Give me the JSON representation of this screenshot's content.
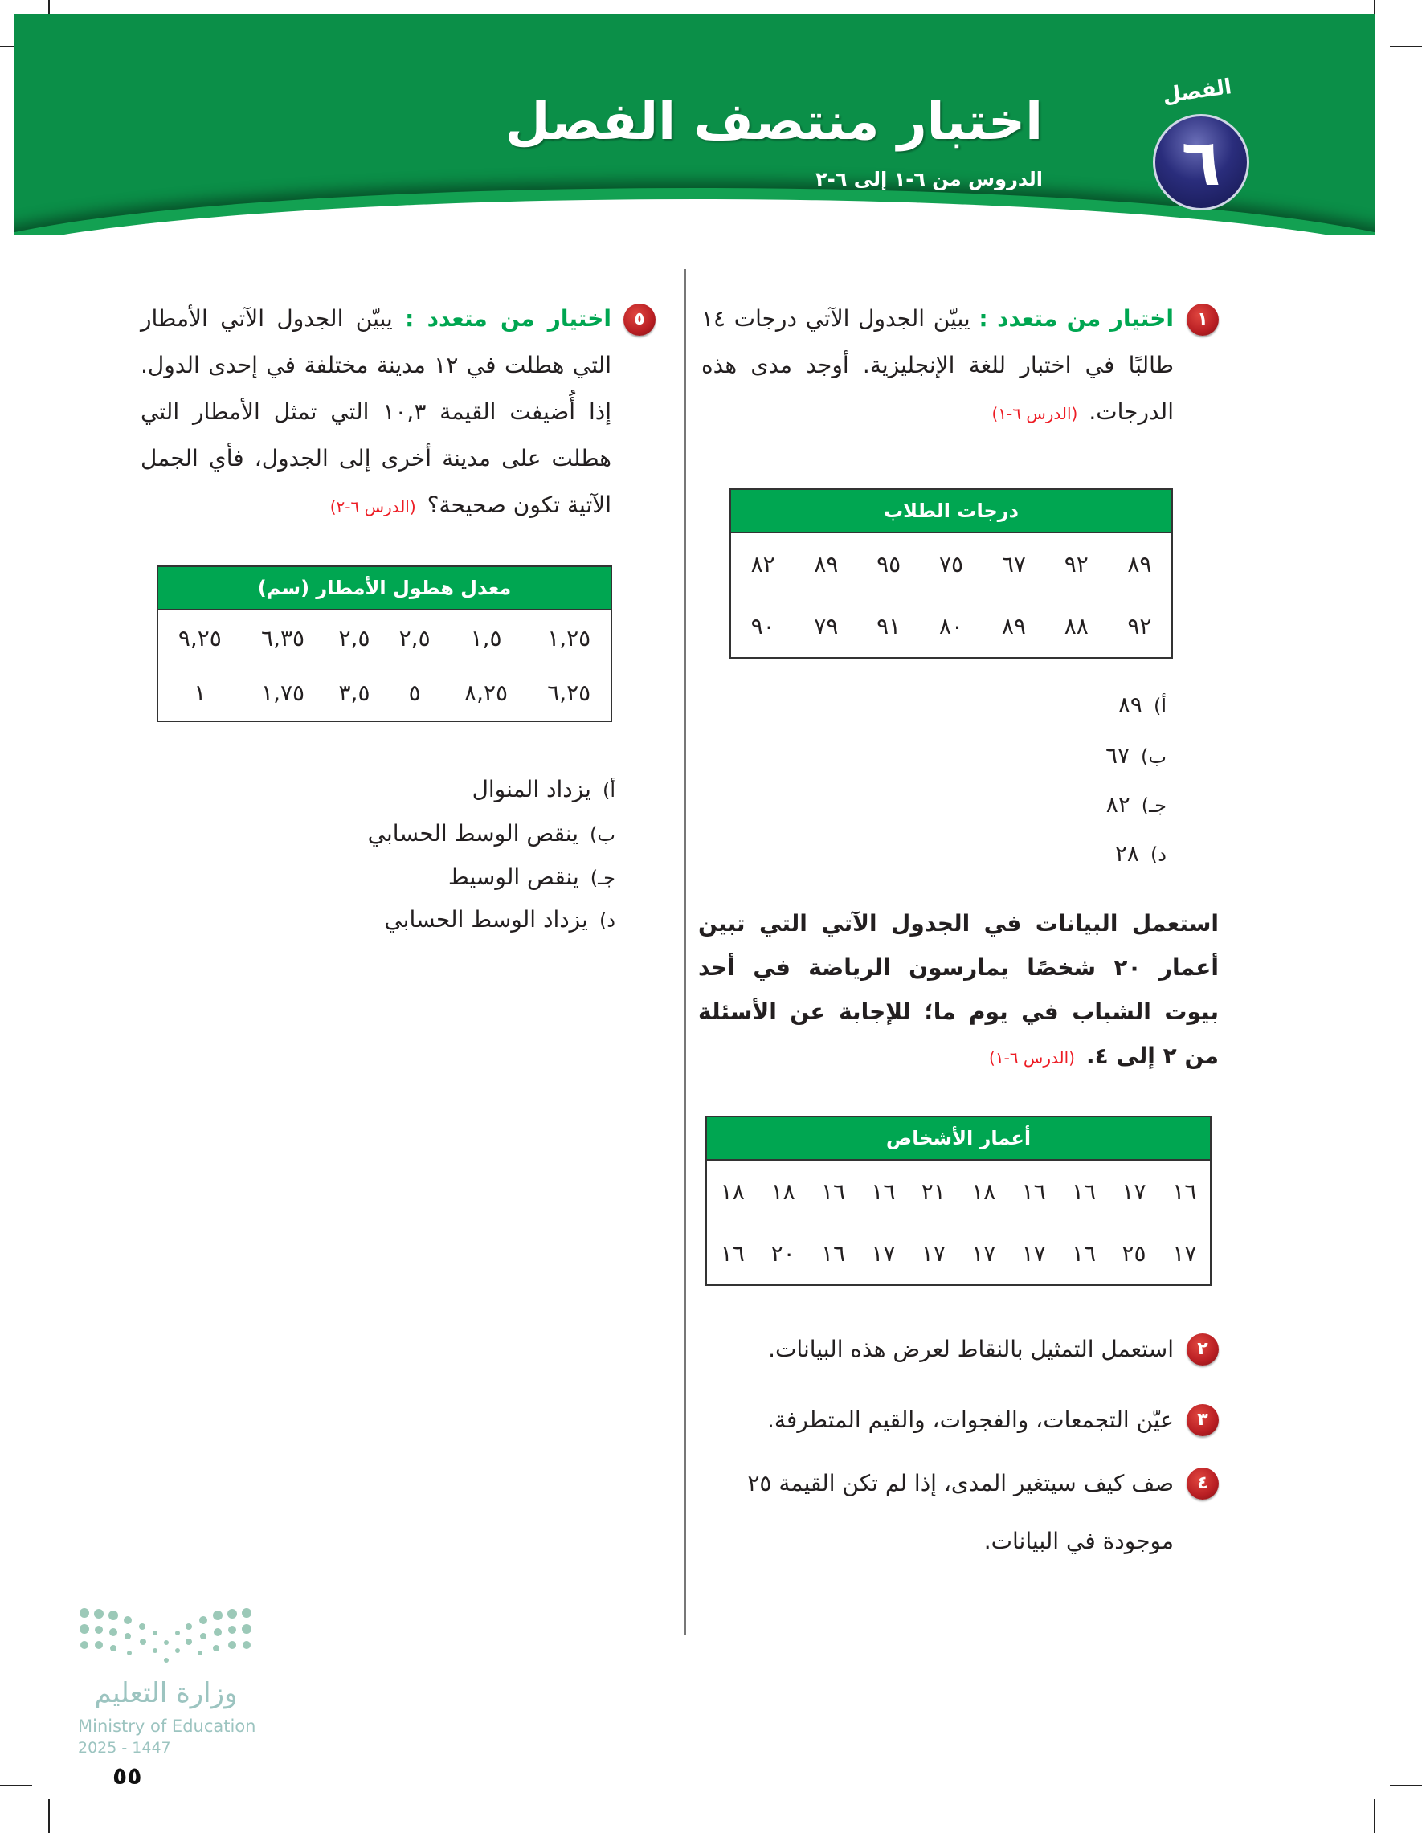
{
  "header": {
    "chapter_label": "الفصل",
    "chapter_number": "٦",
    "title": "اختبار منتصف الفصل",
    "subtitle": "الدروس من ٦-١ إلى ٦-٢",
    "color": "#0b8f48"
  },
  "q1": {
    "number": "١",
    "keyword": "اختيار من متعدد :",
    "text": "يبيّن الجدول الآتي درجات ١٤ طالبًا في اختبار للغة الإنجليزية. أوجد مدى هذه الدرجات.",
    "ref": "(الدرس ٦-١)",
    "table": {
      "header": "درجات الطلاب",
      "rows": [
        [
          "٨٩",
          "٩٢",
          "٦٧",
          "٧٥",
          "٩٥",
          "٨٩",
          "٨٢"
        ],
        [
          "٩٢",
          "٨٨",
          "٨٩",
          "٨٠",
          "٩١",
          "٧٩",
          "٩٠"
        ]
      ]
    },
    "options": [
      {
        "letter": "أ)",
        "text": "٨٩"
      },
      {
        "letter": "ب)",
        "text": "٦٧"
      },
      {
        "letter": "جـ)",
        "text": "٨٢"
      },
      {
        "letter": "د)",
        "text": "٢٨"
      }
    ]
  },
  "intro": {
    "text": "استعمل البيانات في الجدول الآتي التي تبين أعمار ٢٠ شخصًا يمارسون الرياضة في أحد بيوت الشباب في يوم ما؛ للإجابة عن الأسئلة من ٢ إلى ٤.",
    "ref": "(الدرس ٦-١)",
    "table": {
      "header": "أعمار الأشخاص",
      "rows": [
        [
          "١٦",
          "١٧",
          "١٦",
          "١٦",
          "١٨",
          "٢١",
          "١٦",
          "١٦",
          "١٨",
          "١٨"
        ],
        [
          "١٧",
          "٢٥",
          "١٦",
          "١٧",
          "١٧",
          "١٧",
          "١٧",
          "١٦",
          "٢٠",
          "١٦"
        ]
      ]
    }
  },
  "q2": {
    "number": "٢",
    "text": "استعمل التمثيل بالنقاط لعرض هذه البيانات."
  },
  "q3": {
    "number": "٣",
    "text": "عيّن التجمعات، والفجوات، والقيم المتطرفة."
  },
  "q4": {
    "number": "٤",
    "text": "صف كيف سيتغير المدى، إذا لم تكن القيمة ٢٥ موجودة في البيانات."
  },
  "q5": {
    "number": "٥",
    "keyword": "اختيار من متعدد :",
    "text": "يبيّن الجدول الآتي الأمطار التي هطلت في ١٢ مدينة مختلفة في إحدى الدول. إذا أُضيفت القيمة ١٠,٣ التي تمثل الأمطار التي هطلت على مدينة أخرى إلى الجدول، فأي الجمل الآتية تكون صحيحة؟",
    "ref": "(الدرس ٦-٢)",
    "table": {
      "header": "معدل هطول الأمطار (سم)",
      "rows": [
        [
          "١,٢٥",
          "١,٥",
          "٢,٥",
          "٢,٥",
          "٦,٣٥",
          "٩,٢٥"
        ],
        [
          "٦,٢٥",
          "٨,٢٥",
          "٥",
          "٣,٥",
          "١,٧٥",
          "١"
        ]
      ]
    },
    "options": [
      {
        "letter": "أ)",
        "text": "يزداد المنوال"
      },
      {
        "letter": "ب)",
        "text": "ينقص الوسط الحسابي"
      },
      {
        "letter": "جـ)",
        "text": "ينقص الوسيط"
      },
      {
        "letter": "د)",
        "text": "يزداد الوسط الحسابي"
      }
    ]
  },
  "footer": {
    "page_number": "٥٥",
    "logo_arabic": "وزارة التعليم",
    "logo_english": "Ministry of Education",
    "logo_year": "2025 - 1447"
  }
}
